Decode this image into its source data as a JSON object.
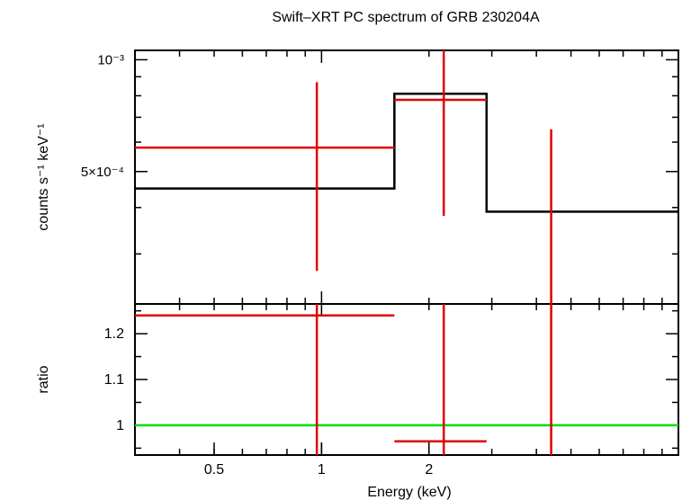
{
  "chart_data": [
    {
      "type": "step",
      "panel": "spectrum",
      "title": "Swift–XRT PC spectrum of GRB 230204A",
      "ylabel": "counts s⁻¹ keV⁻¹",
      "xscale": "log",
      "yscale": "log",
      "xlim": [
        0.3,
        10.0
      ],
      "ylim": [
        0.00022,
        0.00106
      ],
      "y_ticks": [
        {
          "value": 0.001,
          "label": "10⁻³"
        },
        {
          "value": 0.0005,
          "label": "5×10⁻⁴"
        }
      ],
      "model_steps": [
        {
          "x0": 0.3,
          "x1": 1.6,
          "y": 0.00045
        },
        {
          "x0": 1.6,
          "x1": 2.9,
          "y": 0.00081
        },
        {
          "x0": 2.9,
          "x1": 10.0,
          "y": 0.00039
        }
      ],
      "data_points": [
        {
          "x": 0.97,
          "xlo": 0.3,
          "xhi": 1.6,
          "y": 0.00058,
          "ylo": 0.00027,
          "yhi": 0.00087
        },
        {
          "x": 2.2,
          "xlo": 1.6,
          "xhi": 2.9,
          "y": 0.00078,
          "ylo": 0.00038,
          "yhi": 0.00106
        },
        {
          "x": 4.4,
          "xlo": 4.4,
          "xhi": 4.4,
          "y": 0.00022,
          "ylo": 0.00022,
          "yhi": 0.00065
        }
      ]
    },
    {
      "type": "scatter",
      "panel": "ratio",
      "xlabel": "Energy (keV)",
      "ylabel": "ratio",
      "xscale": "log",
      "xlim": [
        0.3,
        10.0
      ],
      "ylim": [
        0.935,
        1.265
      ],
      "x_ticks": [
        {
          "value": 0.5,
          "label": "0.5"
        },
        {
          "value": 1,
          "label": "1"
        },
        {
          "value": 2,
          "label": "2"
        }
      ],
      "y_ticks": [
        {
          "value": 1.0,
          "label": "1"
        },
        {
          "value": 1.1,
          "label": "1.1"
        },
        {
          "value": 1.2,
          "label": "1.2"
        }
      ],
      "reference_line": 1.0,
      "data_points": [
        {
          "x": 0.97,
          "xlo": 0.3,
          "xhi": 1.6,
          "y": 1.24,
          "ylo": 0.935,
          "yhi": 1.265
        },
        {
          "x": 2.2,
          "xlo": 1.6,
          "xhi": 2.9,
          "y": 0.965,
          "ylo": 0.935,
          "yhi": 1.265
        },
        {
          "x": 4.4,
          "xlo": 4.4,
          "xhi": 4.4,
          "y": 0.935,
          "ylo": 0.935,
          "yhi": 1.265
        }
      ]
    }
  ],
  "colors": {
    "data": "#e00000",
    "model": "#000000",
    "reference": "#00dd00"
  }
}
